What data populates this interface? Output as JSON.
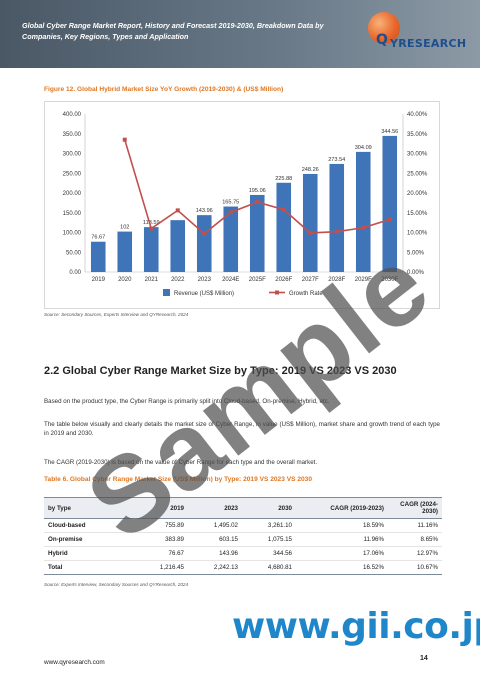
{
  "header": {
    "title": "Global Cyber Range Market Report, History and Forecast 2019-2030, Breakdown Data by Companies, Key Regions, Types and Application",
    "logo_q": "Q",
    "logo_text": "YRESEARCH"
  },
  "figure": {
    "title": "Figure 12.   Global Hybrid Market Size YoY Growth (2019-2030) & (US$ Million)",
    "source": "Source: Secondary Sources, Experts Interview and QYResearch, 2024"
  },
  "chart_data": {
    "type": "bar",
    "categories": [
      "2019",
      "2020",
      "2021",
      "2022",
      "2023",
      "2024E",
      "2025F",
      "2026F",
      "2027F",
      "2028F",
      "2029F",
      "2030F"
    ],
    "series": [
      {
        "name": "Revenue (US$ Million)",
        "type": "bar",
        "axis": "left",
        "color": "#3f75b8",
        "values": [
          76.67,
          102.32,
          113.59,
          131.28,
          143.96,
          165.75,
          195.06,
          225.88,
          248.26,
          273.54,
          304.09,
          344.56
        ],
        "labels": [
          "76.67",
          "102",
          "113.59",
          "",
          "143.96",
          "165.75",
          "195.06",
          "225.88",
          "248.26",
          "273.54",
          "304.09",
          "344.56"
        ]
      },
      {
        "name": "Growth Rate",
        "type": "line",
        "axis": "right",
        "color": "#c0504d",
        "values": [
          null,
          33.5,
          11.0,
          15.6,
          9.7,
          15.1,
          17.7,
          15.8,
          9.9,
          10.2,
          11.2,
          13.3
        ]
      }
    ],
    "y_left": {
      "min": 0,
      "max": 400,
      "ticks": [
        "0.00",
        "50.00",
        "100.00",
        "150.00",
        "200.00",
        "250.00",
        "300.00",
        "350.00",
        "400.00"
      ]
    },
    "y_right": {
      "min": 0,
      "max": 40,
      "ticks": [
        "0.00%",
        "5.00%",
        "10.00%",
        "15.00%",
        "20.00%",
        "25.00%",
        "30.00%",
        "35.00%",
        "40.00%"
      ]
    },
    "legend_position": "bottom",
    "grid": false
  },
  "section": {
    "heading": "2.2  Global Cyber Range Market Size by Type: 2019 VS 2023 VS 2030",
    "p1": "Based on the product type, the Cyber Range is primarily split into Cloud-based, On-premise, Hybrid, etc.",
    "p2": "The table below visually and clearly details the market size of Cyber Range, in value (US$ Million), market share and growth trend of each type in 2019 and 2030.",
    "p3": "The CAGR (2019-2030) is based on the value of Cyber Range for each type and the overall market."
  },
  "table": {
    "title": "Table 6.   Global Cyber Range Market Size (US$ Million) by Type: 2019 VS 2023 VS 2030",
    "headers": [
      "by Type",
      "2019",
      "2023",
      "2030",
      "CAGR (2019-2023)",
      "CAGR (2024-2030)"
    ],
    "rows": [
      [
        "Cloud-based",
        "755.89",
        "1,495.02",
        "3,261.10",
        "18.59%",
        "11.16%"
      ],
      [
        "On-premise",
        "383.89",
        "603.15",
        "1,075.15",
        "11.96%",
        "8.65%"
      ],
      [
        "Hybrid",
        "76.67",
        "143.96",
        "344.56",
        "17.06%",
        "12.97%"
      ],
      [
        "Total",
        "1,216.45",
        "2,242.13",
        "4,680.81",
        "16.52%",
        "10.67%"
      ]
    ],
    "source": "Source: Experts Interview, Secondary Sources and QYResearch, 2024"
  },
  "footer": {
    "url": "www.qyresearch.com",
    "page": "14"
  },
  "watermark": {
    "text": "Sample",
    "gii": "www.gii.co.jp"
  }
}
